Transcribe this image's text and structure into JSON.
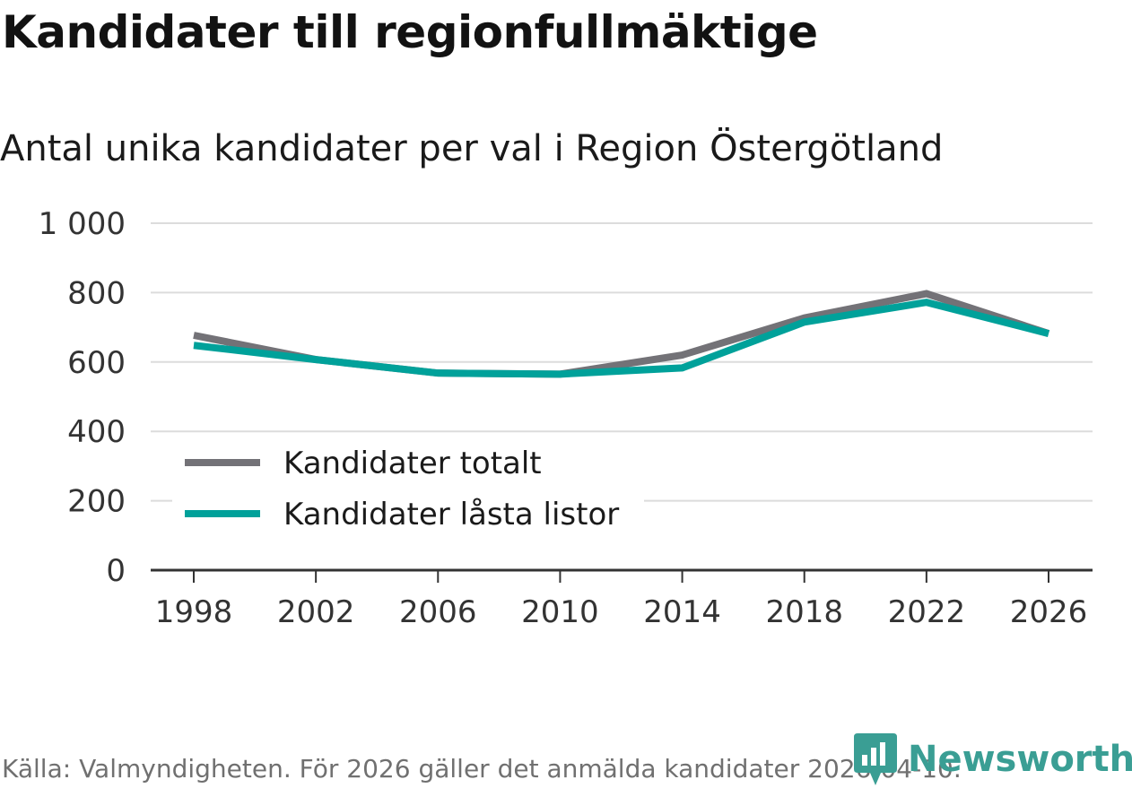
{
  "title": "Kandidater till regionfullmäktige",
  "subtitle": "Antal unika kandidater per val i Region Östergötland",
  "source": "Källa: Valmyndigheten. För 2026 gäller det anmälda kandidater 2026-04-10.",
  "brand": {
    "name": "Newsworthy",
    "icon": "bar-chart-logo-icon",
    "color": "#3a9e94"
  },
  "chart_data": {
    "type": "line",
    "x": [
      1998,
      2002,
      2006,
      2010,
      2014,
      2018,
      2022,
      2026
    ],
    "x_tick_labels": [
      "1998",
      "2002",
      "2006",
      "2010",
      "2014",
      "2018",
      "2022",
      "2026"
    ],
    "ylim": [
      0,
      1000
    ],
    "y_ticks": [
      0,
      200,
      400,
      600,
      800,
      1000
    ],
    "y_tick_labels": [
      "0",
      "200",
      "400",
      "600",
      "800",
      "1 000"
    ],
    "grid": true,
    "legend_position": "bottom-left",
    "xlabel": "",
    "ylabel": "",
    "series": [
      {
        "name": "Kandidater totalt",
        "color": "#737277",
        "values": [
          677,
          607,
          568,
          565,
          620,
          727,
          797,
          682
        ]
      },
      {
        "name": "Kandidater låsta listor",
        "color": "#00a19a",
        "values": [
          648,
          607,
          568,
          565,
          583,
          715,
          772,
          682
        ]
      }
    ]
  }
}
